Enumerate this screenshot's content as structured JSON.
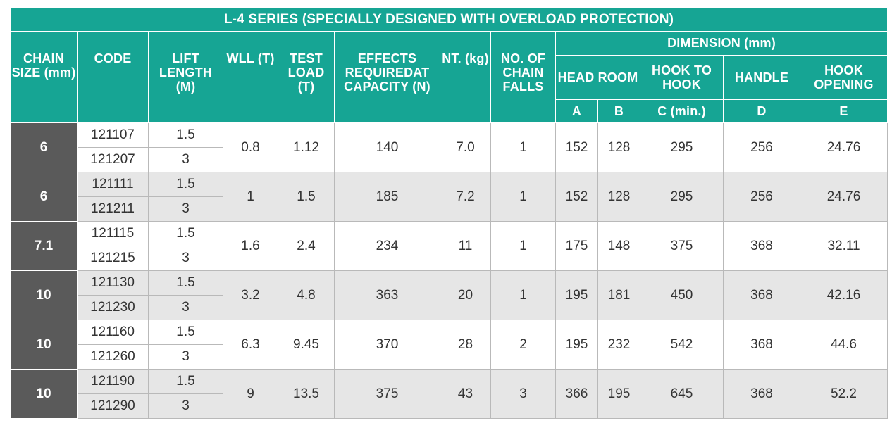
{
  "title": "L-4 SERIES (SPECIALLY DESIGNED WITH OVERLOAD PROTECTION)",
  "headers": {
    "chain_size": "CHAIN SIZE (mm)",
    "code": "CODE",
    "lift_length": "LIFT LENGTH (M)",
    "wll": "WLL (T)",
    "test_load": "TEST LOAD (T)",
    "effects": "EFFECTS REQUIREDAT CAPACITY (N)",
    "nt": "NT. (kg)",
    "falls": "NO. OF CHAIN FALLS",
    "dimension": "DIMENSION (mm)",
    "head_room": "HEAD ROOM",
    "hook_to_hook": "HOOK TO HOOK",
    "handle": "HANDLE",
    "hook_opening": "HOOK OPENING",
    "sub_a": "A",
    "sub_b": "B",
    "sub_c": "C (min.)",
    "sub_d": "D",
    "sub_e": "E"
  },
  "rows": [
    {
      "chain": "6",
      "codes": [
        "121107",
        "121207"
      ],
      "lifts": [
        "1.5",
        "3"
      ],
      "wll": "0.8",
      "test": "1.12",
      "effects": "140",
      "nt": "7.0",
      "falls": "1",
      "a": "152",
      "b": "128",
      "c": "295",
      "d": "256",
      "e": "24.76"
    },
    {
      "chain": "6",
      "codes": [
        "121111",
        "121211"
      ],
      "lifts": [
        "1.5",
        "3"
      ],
      "wll": "1",
      "test": "1.5",
      "effects": "185",
      "nt": "7.2",
      "falls": "1",
      "a": "152",
      "b": "128",
      "c": "295",
      "d": "256",
      "e": "24.76"
    },
    {
      "chain": "7.1",
      "codes": [
        "121115",
        "121215"
      ],
      "lifts": [
        "1.5",
        "3"
      ],
      "wll": "1.6",
      "test": "2.4",
      "effects": "234",
      "nt": "11",
      "falls": "1",
      "a": "175",
      "b": "148",
      "c": "375",
      "d": "368",
      "e": "32.11"
    },
    {
      "chain": "10",
      "codes": [
        "121130",
        "121230"
      ],
      "lifts": [
        "1.5",
        "3"
      ],
      "wll": "3.2",
      "test": "4.8",
      "effects": "363",
      "nt": "20",
      "falls": "1",
      "a": "195",
      "b": "181",
      "c": "450",
      "d": "368",
      "e": "42.16"
    },
    {
      "chain": "10",
      "codes": [
        "121160",
        "121260"
      ],
      "lifts": [
        "1.5",
        "3"
      ],
      "wll": "6.3",
      "test": "9.45",
      "effects": "370",
      "nt": "28",
      "falls": "2",
      "a": "195",
      "b": "232",
      "c": "542",
      "d": "368",
      "e": "44.6"
    },
    {
      "chain": "10",
      "codes": [
        "121190",
        "121290"
      ],
      "lifts": [
        "1.5",
        "3"
      ],
      "wll": "9",
      "test": "13.5",
      "effects": "375",
      "nt": "43",
      "falls": "3",
      "a": "366",
      "b": "195",
      "c": "645",
      "d": "368",
      "e": "52.2"
    }
  ],
  "colors": {
    "header_bg": "#16a594",
    "chain_bg": "#5a5a5a",
    "alt_row_bg": "#e6e6e6"
  }
}
